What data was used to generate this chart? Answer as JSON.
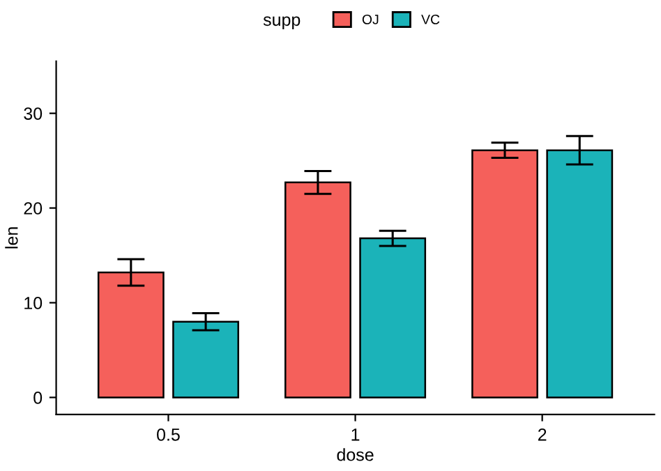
{
  "chart_data": {
    "type": "bar",
    "xlabel": "dose",
    "ylabel": "len",
    "legend_title": "supp",
    "categories": [
      "0.5",
      "1",
      "2"
    ],
    "series": [
      {
        "name": "OJ",
        "color": "#f5605b",
        "values": [
          13.2,
          22.7,
          26.1
        ],
        "errors": [
          1.4,
          1.2,
          0.8
        ]
      },
      {
        "name": "VC",
        "color": "#1bb3b9",
        "values": [
          8.0,
          16.8,
          26.1
        ],
        "errors": [
          0.9,
          0.8,
          1.5
        ]
      }
    ],
    "ylim": [
      -1.8,
      35.5
    ],
    "yticks": [
      0,
      10,
      20,
      30
    ],
    "grid": false,
    "legend": "top"
  }
}
